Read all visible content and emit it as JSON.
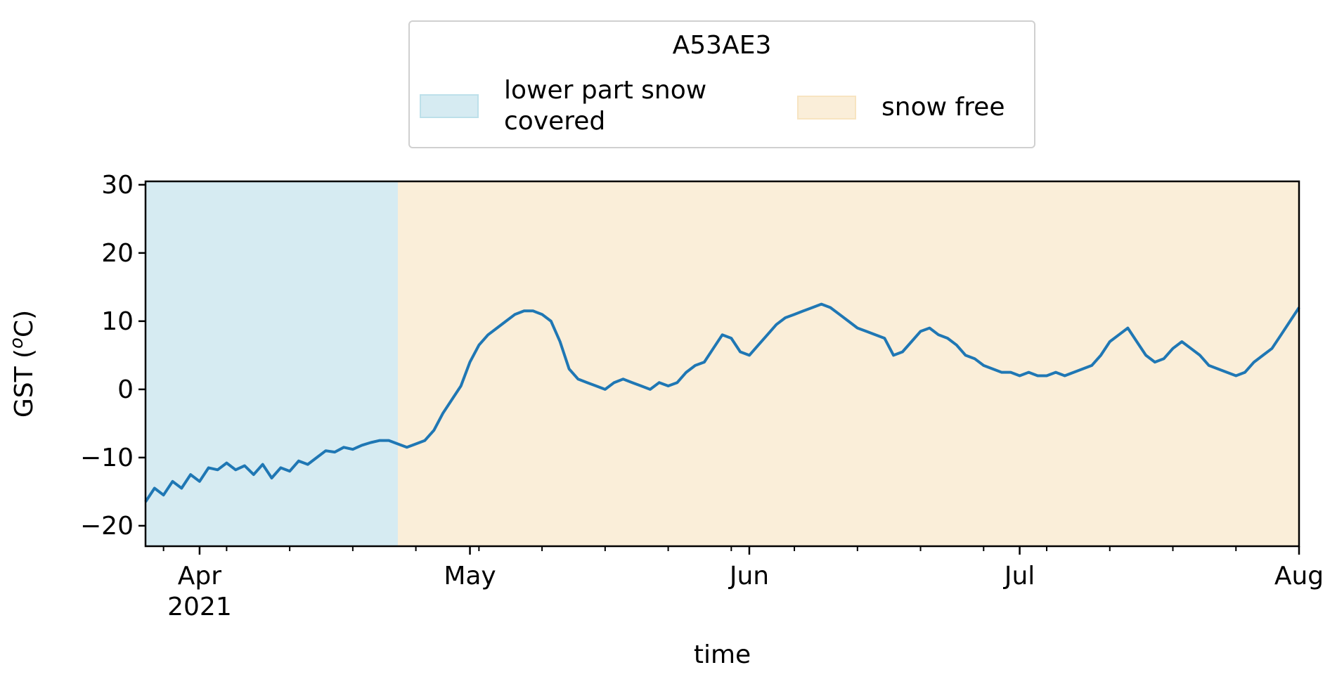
{
  "chart_data": {
    "type": "line",
    "legend": {
      "title": "A53AE3",
      "placement": "top-center",
      "entries": [
        {
          "label": "lower part snow covered",
          "color": "#add8e6"
        },
        {
          "label": "snow free",
          "color": "#f5deb3"
        }
      ]
    },
    "xlabel": "time",
    "ylabel": "GST (oC)",
    "ylabel_display": {
      "base": "GST (",
      "superscript": "o",
      "rest": "C)"
    },
    "xlim": [
      "2021-03-26",
      "2021-08-01"
    ],
    "ylim": [
      -23,
      30.5
    ],
    "xticks": [
      {
        "date": "2021-04-01",
        "label": "Apr",
        "sublabel": "2021"
      },
      {
        "date": "2021-05-01",
        "label": "May",
        "sublabel": ""
      },
      {
        "date": "2021-06-01",
        "label": "Jun",
        "sublabel": ""
      },
      {
        "date": "2021-07-01",
        "label": "Jul",
        "sublabel": ""
      },
      {
        "date": "2021-08-01",
        "label": "Aug",
        "sublabel": ""
      }
    ],
    "yticks": [
      -20,
      -10,
      0,
      10,
      20,
      30
    ],
    "ytick_labels": [
      "−20",
      "−10",
      "0",
      "10",
      "20",
      "30"
    ],
    "spans": [
      {
        "name": "lower part snow covered",
        "start": "2021-03-26",
        "end": "2021-04-23",
        "color": "#add8e6",
        "alpha": 0.5
      },
      {
        "name": "snow free",
        "start": "2021-04-23",
        "end": "2021-08-01",
        "color": "#f5deb3",
        "alpha": 0.5
      }
    ],
    "series": [
      {
        "color": "#1f77b4",
        "points": [
          [
            "2021-03-26",
            -16.5
          ],
          [
            "2021-03-27",
            -14.5
          ],
          [
            "2021-03-28",
            -15.5
          ],
          [
            "2021-03-29",
            -13.5
          ],
          [
            "2021-03-30",
            -14.5
          ],
          [
            "2021-03-31",
            -12.5
          ],
          [
            "2021-04-01",
            -13.5
          ],
          [
            "2021-04-02",
            -11.5
          ],
          [
            "2021-04-03",
            -11.8
          ],
          [
            "2021-04-04",
            -10.8
          ],
          [
            "2021-04-05",
            -11.8
          ],
          [
            "2021-04-06",
            -11.2
          ],
          [
            "2021-04-07",
            -12.5
          ],
          [
            "2021-04-08",
            -11.0
          ],
          [
            "2021-04-09",
            -13.0
          ],
          [
            "2021-04-10",
            -11.5
          ],
          [
            "2021-04-11",
            -12.0
          ],
          [
            "2021-04-12",
            -10.5
          ],
          [
            "2021-04-13",
            -11.0
          ],
          [
            "2021-04-14",
            -10.0
          ],
          [
            "2021-04-15",
            -9.0
          ],
          [
            "2021-04-16",
            -9.2
          ],
          [
            "2021-04-17",
            -8.5
          ],
          [
            "2021-04-18",
            -8.8
          ],
          [
            "2021-04-19",
            -8.2
          ],
          [
            "2021-04-20",
            -7.8
          ],
          [
            "2021-04-21",
            -7.5
          ],
          [
            "2021-04-22",
            -7.5
          ],
          [
            "2021-04-23",
            -8.0
          ],
          [
            "2021-04-24",
            -8.5
          ],
          [
            "2021-04-25",
            -8.0
          ],
          [
            "2021-04-26",
            -7.5
          ],
          [
            "2021-04-27",
            -6.0
          ],
          [
            "2021-04-28",
            -3.5
          ],
          [
            "2021-04-29",
            -1.5
          ],
          [
            "2021-04-30",
            0.5
          ],
          [
            "2021-05-01",
            4.0
          ],
          [
            "2021-05-02",
            6.5
          ],
          [
            "2021-05-03",
            8.0
          ],
          [
            "2021-05-04",
            9.0
          ],
          [
            "2021-05-05",
            10.0
          ],
          [
            "2021-05-06",
            11.0
          ],
          [
            "2021-05-07",
            11.5
          ],
          [
            "2021-05-08",
            11.5
          ],
          [
            "2021-05-09",
            11.0
          ],
          [
            "2021-05-10",
            10.0
          ],
          [
            "2021-05-11",
            7.0
          ],
          [
            "2021-05-12",
            3.0
          ],
          [
            "2021-05-13",
            1.5
          ],
          [
            "2021-05-14",
            1.0
          ],
          [
            "2021-05-15",
            0.5
          ],
          [
            "2021-05-16",
            0.0
          ],
          [
            "2021-05-17",
            1.0
          ],
          [
            "2021-05-18",
            1.5
          ],
          [
            "2021-05-19",
            1.0
          ],
          [
            "2021-05-20",
            0.5
          ],
          [
            "2021-05-21",
            0.0
          ],
          [
            "2021-05-22",
            1.0
          ],
          [
            "2021-05-23",
            0.5
          ],
          [
            "2021-05-24",
            1.0
          ],
          [
            "2021-05-25",
            2.5
          ],
          [
            "2021-05-26",
            3.5
          ],
          [
            "2021-05-27",
            4.0
          ],
          [
            "2021-05-28",
            6.0
          ],
          [
            "2021-05-29",
            8.0
          ],
          [
            "2021-05-30",
            7.5
          ],
          [
            "2021-05-31",
            5.5
          ],
          [
            "2021-06-01",
            5.0
          ],
          [
            "2021-06-02",
            6.5
          ],
          [
            "2021-06-03",
            8.0
          ],
          [
            "2021-06-04",
            9.5
          ],
          [
            "2021-06-05",
            10.5
          ],
          [
            "2021-06-06",
            11.0
          ],
          [
            "2021-06-07",
            11.5
          ],
          [
            "2021-06-08",
            12.0
          ],
          [
            "2021-06-09",
            12.5
          ],
          [
            "2021-06-10",
            12.0
          ],
          [
            "2021-06-11",
            11.0
          ],
          [
            "2021-06-12",
            10.0
          ],
          [
            "2021-06-13",
            9.0
          ],
          [
            "2021-06-14",
            8.5
          ],
          [
            "2021-06-15",
            8.0
          ],
          [
            "2021-06-16",
            7.5
          ],
          [
            "2021-06-17",
            5.0
          ],
          [
            "2021-06-18",
            5.5
          ],
          [
            "2021-06-19",
            7.0
          ],
          [
            "2021-06-20",
            8.5
          ],
          [
            "2021-06-21",
            9.0
          ],
          [
            "2021-06-22",
            8.0
          ],
          [
            "2021-06-23",
            7.5
          ],
          [
            "2021-06-24",
            6.5
          ],
          [
            "2021-06-25",
            5.0
          ],
          [
            "2021-06-26",
            4.5
          ],
          [
            "2021-06-27",
            3.5
          ],
          [
            "2021-06-28",
            3.0
          ],
          [
            "2021-06-29",
            2.5
          ],
          [
            "2021-06-30",
            2.5
          ],
          [
            "2021-07-01",
            2.0
          ],
          [
            "2021-07-02",
            2.5
          ],
          [
            "2021-07-03",
            2.0
          ],
          [
            "2021-07-04",
            2.0
          ],
          [
            "2021-07-05",
            2.5
          ],
          [
            "2021-07-06",
            2.0
          ],
          [
            "2021-07-07",
            2.5
          ],
          [
            "2021-07-08",
            3.0
          ],
          [
            "2021-07-09",
            3.5
          ],
          [
            "2021-07-10",
            5.0
          ],
          [
            "2021-07-11",
            7.0
          ],
          [
            "2021-07-12",
            8.0
          ],
          [
            "2021-07-13",
            9.0
          ],
          [
            "2021-07-14",
            7.0
          ],
          [
            "2021-07-15",
            5.0
          ],
          [
            "2021-07-16",
            4.0
          ],
          [
            "2021-07-17",
            4.5
          ],
          [
            "2021-07-18",
            6.0
          ],
          [
            "2021-07-19",
            7.0
          ],
          [
            "2021-07-20",
            6.0
          ],
          [
            "2021-07-21",
            5.0
          ],
          [
            "2021-07-22",
            3.5
          ],
          [
            "2021-07-23",
            3.0
          ],
          [
            "2021-07-24",
            2.5
          ],
          [
            "2021-07-25",
            2.0
          ],
          [
            "2021-07-26",
            2.5
          ],
          [
            "2021-07-27",
            4.0
          ],
          [
            "2021-07-28",
            5.0
          ],
          [
            "2021-07-29",
            6.0
          ],
          [
            "2021-07-30",
            8.0
          ],
          [
            "2021-07-31",
            10.0
          ],
          [
            "2021-08-01",
            12.0
          ]
        ]
      }
    ],
    "grid": false
  }
}
